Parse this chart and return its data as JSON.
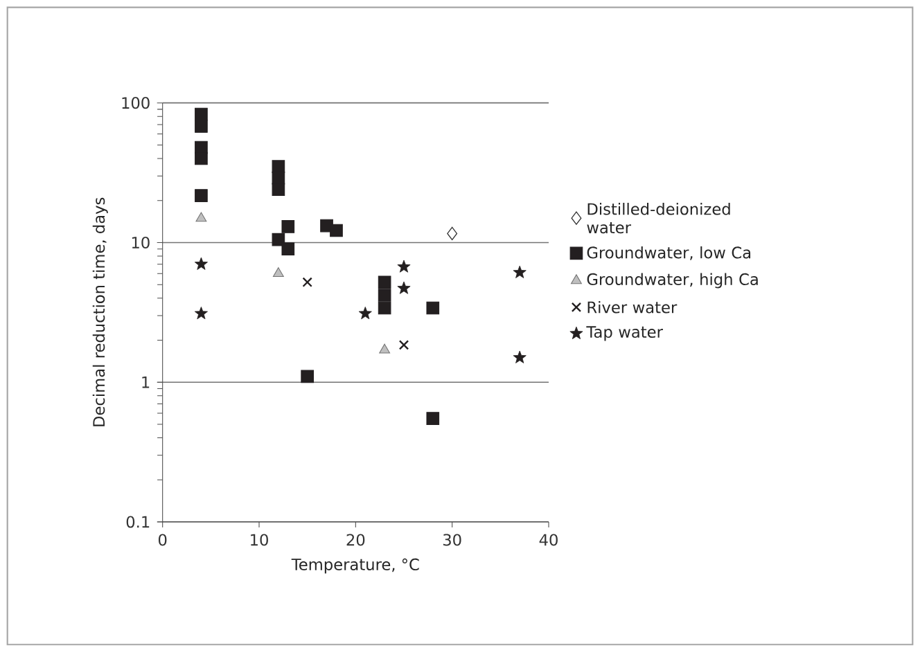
{
  "chart_data": {
    "type": "scatter",
    "xlabel": "Temperature, °C",
    "ylabel": "Decimal reduction time, days",
    "log": "y",
    "xlim": [
      0,
      40
    ],
    "xticks": [
      0,
      10,
      20,
      30,
      40
    ],
    "ylim": [
      0.1,
      100
    ],
    "yticks": [
      0.1,
      1,
      10,
      100
    ],
    "grid": "y",
    "legend": "right",
    "series": [
      {
        "name": "Distilled-deionized water",
        "color": "#ffffff",
        "marker": "diamond",
        "x": [
          30
        ],
        "values": [
          11.6
        ]
      },
      {
        "name": "Groundwater, low Ca",
        "color": "#231f20",
        "marker": "square",
        "x": [
          4,
          4,
          4,
          4,
          4,
          12,
          12,
          12,
          12,
          13,
          13,
          15,
          17,
          18,
          23,
          23,
          23,
          28,
          28
        ],
        "values": [
          83,
          68,
          48,
          40,
          21.7,
          35,
          29,
          24,
          10.5,
          13,
          9,
          1.1,
          13.2,
          12.2,
          5.2,
          4.2,
          3.4,
          3.4,
          0.55
        ]
      },
      {
        "name": "Groundwater, high Ca",
        "color": "#bfbfbf",
        "marker": "triangle",
        "x": [
          4,
          12,
          23
        ],
        "values": [
          14.9,
          6.0,
          1.7
        ]
      },
      {
        "name": "River water",
        "color": "#231f20",
        "marker": "cross",
        "x": [
          15,
          25
        ],
        "values": [
          5.2,
          1.85
        ]
      },
      {
        "name": "Tap water",
        "color": "#231f20",
        "marker": "star",
        "x": [
          4,
          4,
          21,
          25,
          25,
          37,
          37
        ],
        "values": [
          7.0,
          3.1,
          3.1,
          6.7,
          4.7,
          6.1,
          1.5
        ]
      }
    ]
  }
}
